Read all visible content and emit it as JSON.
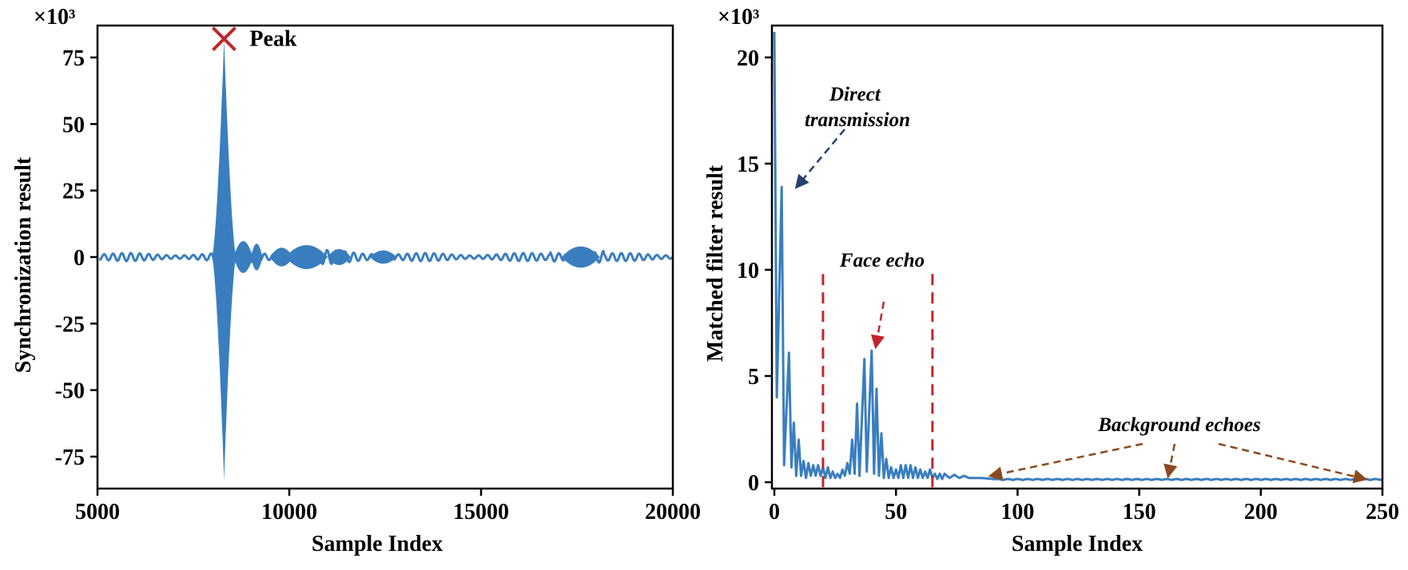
{
  "chart_data": [
    {
      "type": "line",
      "xlabel": "Sample Index",
      "ylabel": "Synchronization result",
      "multiplier": "×10³",
      "xlim": [
        5000,
        20000
      ],
      "ylim": [
        -87,
        87
      ],
      "xticks": [
        5000,
        10000,
        15000,
        20000
      ],
      "xtick_labels": [
        "5000",
        "10000",
        "15000",
        "20000"
      ],
      "yticks": [
        75,
        50,
        25,
        0,
        -25,
        -50,
        -75
      ],
      "ytick_labels": [
        "75",
        "50",
        "25",
        "0",
        "-25",
        "-50",
        "-75"
      ],
      "grid": false,
      "color": "#3a7ebf",
      "signal": {
        "peak_index": 8300,
        "peak_value": 82,
        "min_value": -84,
        "baseline_amplitude": 1.5
      },
      "peak_marker": {
        "x": 8300,
        "y": 82,
        "label": "Peak",
        "color": "#c0262b"
      }
    },
    {
      "type": "line",
      "xlabel": "Sample Index",
      "ylabel": "Matched filter result",
      "multiplier": "×10³",
      "xlim": [
        -1,
        250
      ],
      "ylim": [
        -0.3,
        21.5
      ],
      "xticks": [
        0,
        50,
        100,
        150,
        200,
        250
      ],
      "xtick_labels": [
        "0",
        "50",
        "100",
        "150",
        "200",
        "250"
      ],
      "yticks": [
        20,
        15,
        10,
        5,
        0
      ],
      "ytick_labels": [
        "20",
        "15",
        "10",
        "5",
        "0"
      ],
      "grid": false,
      "color": "#3a7ebf",
      "peaks": [
        [
          0,
          21.2
        ],
        [
          1,
          4
        ],
        [
          3,
          13.9
        ],
        [
          4,
          0.8
        ],
        [
          6,
          6.1
        ],
        [
          7,
          0.7
        ],
        [
          8,
          2.8
        ],
        [
          9,
          0.3
        ],
        [
          10,
          2.0
        ],
        [
          11,
          0.3
        ],
        [
          12,
          1.0
        ],
        [
          13,
          0.2
        ],
        [
          14,
          0.9
        ],
        [
          15,
          0.3
        ],
        [
          16,
          0.8
        ],
        [
          17,
          0.3
        ],
        [
          18,
          0.8
        ],
        [
          19,
          0.3
        ],
        [
          20,
          0.7
        ],
        [
          21,
          0.2
        ],
        [
          22,
          0.7
        ],
        [
          23,
          0.2
        ],
        [
          24,
          0.5
        ],
        [
          25,
          0.2
        ],
        [
          26,
          0.4
        ],
        [
          27,
          0.2
        ],
        [
          28,
          0.6
        ],
        [
          29,
          0.3
        ],
        [
          30,
          0.9
        ],
        [
          31,
          0.4
        ],
        [
          32,
          2.0
        ],
        [
          33,
          0.4
        ],
        [
          34,
          3.7
        ],
        [
          35,
          0.3
        ],
        [
          37,
          5.8
        ],
        [
          38,
          0.5
        ],
        [
          40,
          6.2
        ],
        [
          41,
          0.4
        ],
        [
          42,
          4.4
        ],
        [
          43,
          0.3
        ],
        [
          44,
          2.3
        ],
        [
          45,
          0.2
        ],
        [
          46,
          1.1
        ],
        [
          47,
          0.2
        ],
        [
          48,
          0.7
        ],
        [
          49,
          0.2
        ],
        [
          50,
          0.6
        ],
        [
          51,
          0.2
        ],
        [
          52,
          0.8
        ],
        [
          53,
          0.2
        ],
        [
          54,
          0.8
        ],
        [
          55,
          0.2
        ],
        [
          56,
          0.8
        ],
        [
          57,
          0.2
        ],
        [
          58,
          0.7
        ],
        [
          59,
          0.2
        ],
        [
          60,
          0.6
        ],
        [
          61,
          0.2
        ],
        [
          62,
          0.5
        ],
        [
          63,
          0.2
        ],
        [
          64,
          0.6
        ],
        [
          65,
          0.2
        ],
        [
          66,
          0.4
        ],
        [
          67,
          0.15
        ],
        [
          68,
          0.4
        ],
        [
          69,
          0.15
        ],
        [
          70,
          0.4
        ],
        [
          72,
          0.2
        ],
        [
          74,
          0.35
        ],
        [
          76,
          0.2
        ],
        [
          78,
          0.3
        ],
        [
          80,
          0.2
        ],
        [
          85,
          0.2
        ],
        [
          90,
          0.15
        ]
      ],
      "tail_level": 0.1,
      "face_echo_window": [
        20,
        65
      ],
      "annotations": [
        {
          "label": "Direct transmission",
          "color": "#26406e"
        },
        {
          "label": "Face echo",
          "color": "#c0262b"
        },
        {
          "label": "Background echoes",
          "color": "#8a4a20"
        }
      ]
    }
  ]
}
